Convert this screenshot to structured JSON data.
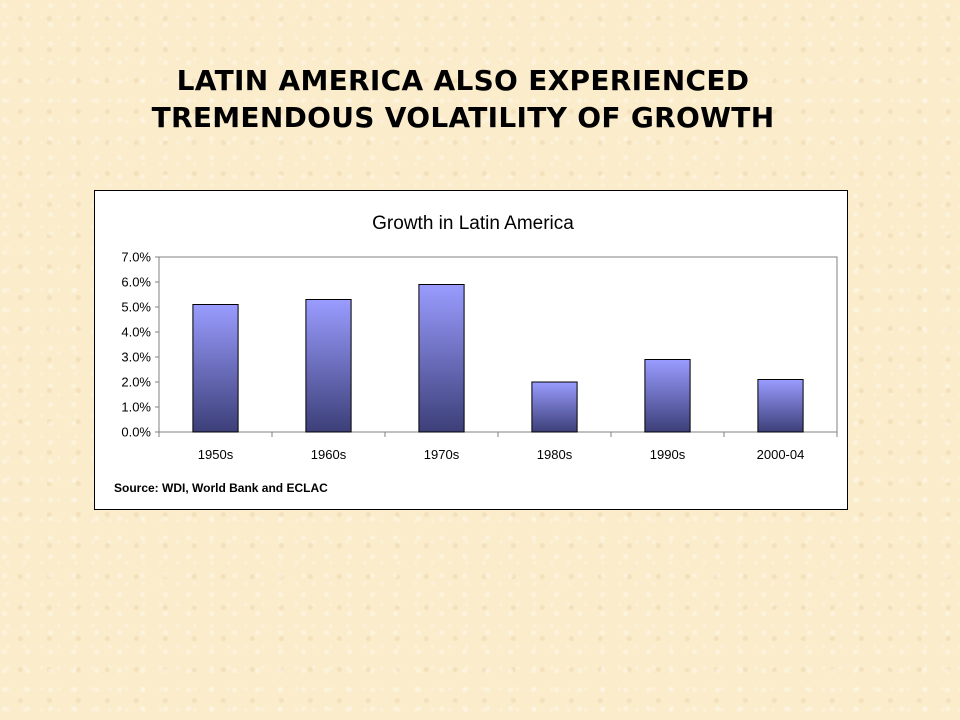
{
  "slide": {
    "title_line1": "LATIN AMERICA ALSO EXPERIENCED",
    "title_line2": "TREMENDOUS VOLATILITY OF GROWTH"
  },
  "chart_data": {
    "type": "bar",
    "title": "Growth in Latin America",
    "categories": [
      "1950s",
      "1960s",
      "1970s",
      "1980s",
      "1990s",
      "2000-04"
    ],
    "values": [
      5.1,
      5.3,
      5.9,
      2.0,
      2.9,
      2.1
    ],
    "value_unit": "%",
    "ylim": [
      0,
      7
    ],
    "yticks": [
      "0.0%",
      "1.0%",
      "2.0%",
      "3.0%",
      "4.0%",
      "5.0%",
      "6.0%",
      "7.0%"
    ],
    "xlabel": "",
    "ylabel": "",
    "grid": false,
    "legend": "none",
    "source_note": "Source: WDI, World Bank and ECLAC",
    "colors": {
      "bar_top": "#9a9cff",
      "bar_bottom": "#3c3f78",
      "axis": "#808080"
    }
  }
}
